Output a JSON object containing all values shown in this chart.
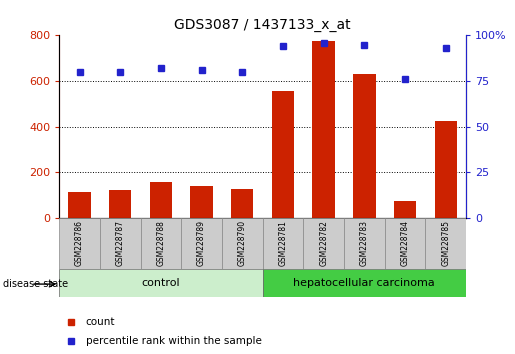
{
  "title": "GDS3087 / 1437133_x_at",
  "samples": [
    "GSM228786",
    "GSM228787",
    "GSM228788",
    "GSM228789",
    "GSM228790",
    "GSM228781",
    "GSM228782",
    "GSM228783",
    "GSM228784",
    "GSM228785"
  ],
  "counts": [
    115,
    120,
    155,
    140,
    125,
    555,
    775,
    630,
    75,
    425
  ],
  "percentile_ranks": [
    80,
    80,
    82,
    81,
    80,
    94,
    96,
    95,
    76,
    93
  ],
  "bar_color": "#cc2200",
  "dot_color": "#2222cc",
  "ylim_left": [
    0,
    800
  ],
  "ylim_right": [
    0,
    100
  ],
  "yticks_left": [
    0,
    200,
    400,
    600,
    800
  ],
  "yticks_right": [
    0,
    25,
    50,
    75,
    100
  ],
  "control_label": "control",
  "carcinoma_label": "hepatocellular carcinoma",
  "disease_state_label": "disease state",
  "legend_count_label": "count",
  "legend_pct_label": "percentile rank within the sample",
  "bar_width": 0.55,
  "n_control": 5,
  "n_carcinoma": 5,
  "control_color_light": "#cceecc",
  "control_color_dark": "#aaddaa",
  "carcinoma_color": "#44cc44",
  "label_box_color": "#cccccc",
  "figwidth": 5.15,
  "figheight": 3.54
}
